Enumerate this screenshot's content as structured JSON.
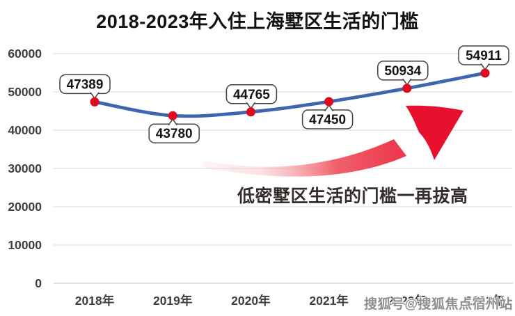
{
  "title": "2018-2023年入住上海墅区生活的门槛",
  "watermark": "搜狐号@搜狐焦点宿州站",
  "colors": {
    "background": "#ffffff",
    "title": "#111111",
    "line": "#3e66b0",
    "marker": "#de0a1e",
    "grid": "#d9d9d9",
    "axis_text": "#3f3f3f",
    "callout_border": "#404040",
    "callout_fill": "#ffffff",
    "callout_text": "#141414",
    "arrow_red": "#e8112d",
    "arrow_fade": "#f9c9cc",
    "annotation_text": "#362b2b",
    "watermark_text": "#8f8f8f"
  },
  "chart_data": {
    "type": "line",
    "title": "2018-2023年入住上海墅区生活的门槛",
    "categories": [
      "2018年",
      "2019年",
      "2020年",
      "2021年",
      "2022年",
      "2023年"
    ],
    "series": [
      {
        "name": "入住上海墅区生活的门槛",
        "values": [
          47389,
          43780,
          44765,
          47450,
          50934,
          54911
        ]
      }
    ],
    "xlabel": "",
    "ylabel": "",
    "ylim": [
      0,
      60000
    ],
    "y_ticks": [
      0,
      10000,
      20000,
      30000,
      40000,
      50000,
      60000
    ],
    "grid": "horizontal",
    "legend": "none",
    "data_labels": true,
    "label_placement": [
      "above",
      "below",
      "above",
      "below",
      "above",
      "above"
    ],
    "annotation": "低密墅区生活的门槛一再拔高",
    "annotation_graphic": "red-swoosh-trend-arrow-up-right"
  }
}
